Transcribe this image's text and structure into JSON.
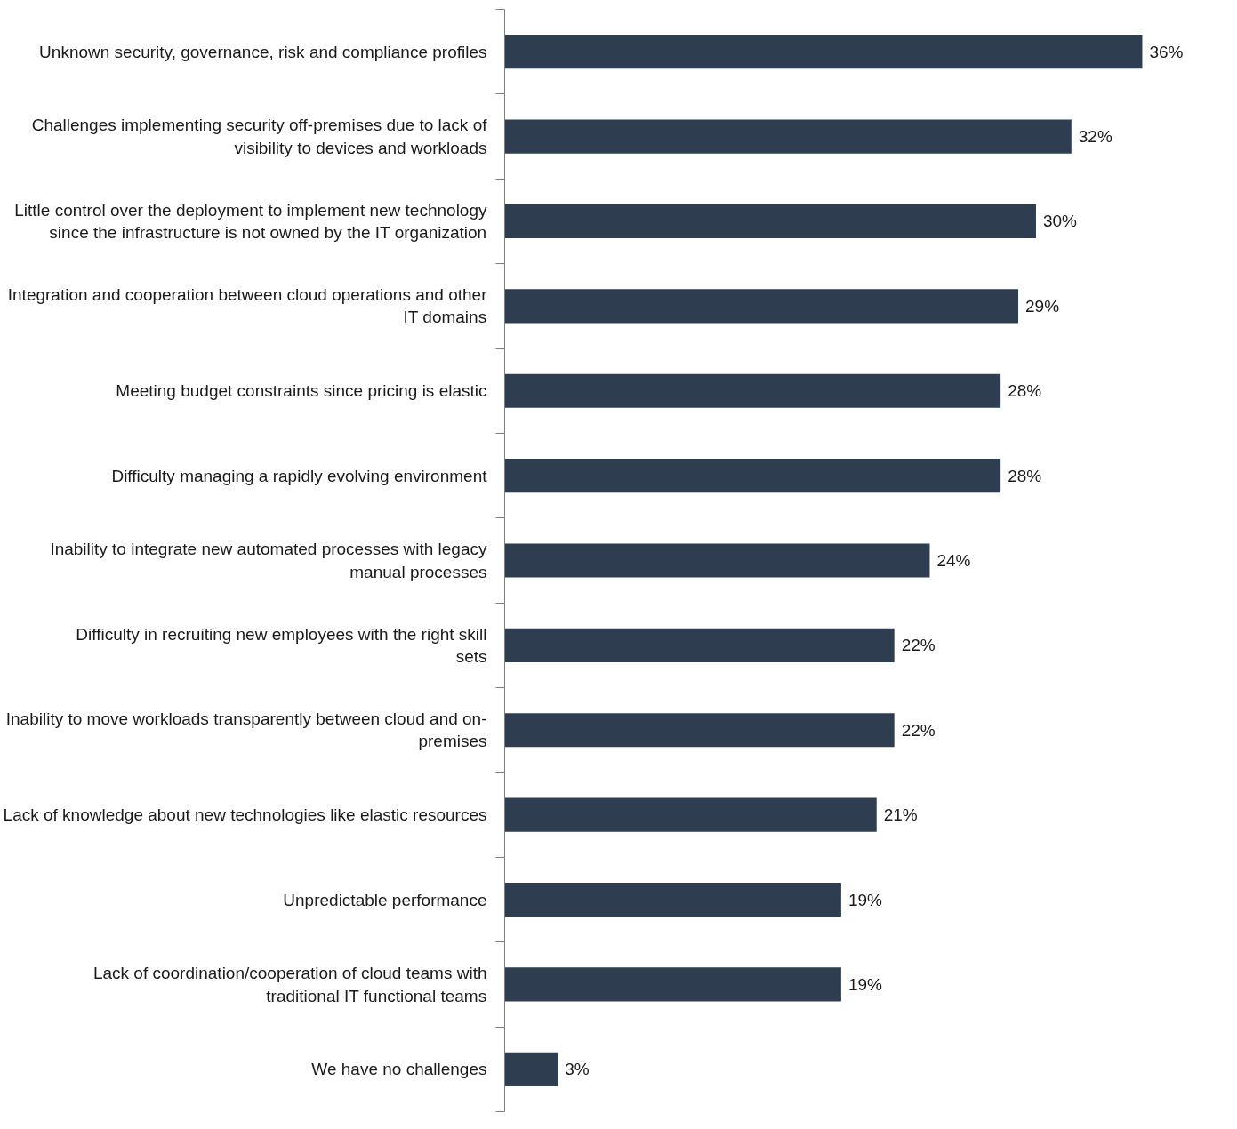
{
  "chart_data": {
    "type": "bar",
    "orientation": "horizontal",
    "color": "#2e3d4f",
    "categories": [
      "Unknown security, governance, risk and compliance profiles",
      "Challenges implementing security off-premises due to lack of visibility to devices and workloads",
      "Little control over the deployment to implement new technology since the infrastructure is not owned by the IT organization",
      "Integration and cooperation between cloud operations and other IT domains",
      "Meeting budget constraints since pricing is elastic",
      "Difficulty managing a rapidly evolving environment",
      "Inability to integrate new automated processes with legacy manual processes",
      "Difficulty in recruiting new employees with the right skill sets",
      "Inability to move workloads transparently between cloud and on-premises",
      "Lack of knowledge about new technologies like elastic resources",
      "Unpredictable performance",
      "Lack of coordination/cooperation of cloud teams with traditional IT functional teams",
      "We have no challenges"
    ],
    "values": [
      36,
      32,
      30,
      29,
      28,
      28,
      24,
      22,
      22,
      21,
      19,
      19,
      3
    ],
    "value_labels": [
      "36%",
      "32%",
      "30%",
      "29%",
      "28%",
      "28%",
      "24%",
      "22%",
      "22%",
      "21%",
      "19%",
      "19%",
      "3%"
    ]
  }
}
